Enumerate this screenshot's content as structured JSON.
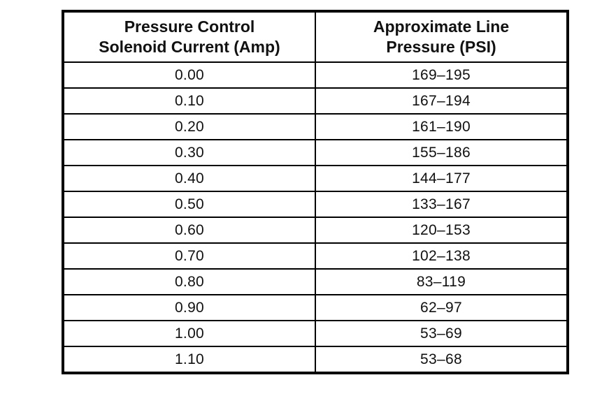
{
  "table": {
    "headers": {
      "col1_line1": "Pressure Control",
      "col1_line2": "Solenoid Current (Amp)",
      "col2_line1": "Approximate Line",
      "col2_line2": "Pressure (PSI)"
    },
    "rows": [
      {
        "amp": "0.00",
        "psi": "169–195"
      },
      {
        "amp": "0.10",
        "psi": "167–194"
      },
      {
        "amp": "0.20",
        "psi": "161–190"
      },
      {
        "amp": "0.30",
        "psi": "155–186"
      },
      {
        "amp": "0.40",
        "psi": "144–177"
      },
      {
        "amp": "0.50",
        "psi": "133–167"
      },
      {
        "amp": "0.60",
        "psi": "120–153"
      },
      {
        "amp": "0.70",
        "psi": "102–138"
      },
      {
        "amp": "0.80",
        "psi": "83–119"
      },
      {
        "amp": "0.90",
        "psi": "62–97"
      },
      {
        "amp": "1.00",
        "psi": "53–69"
      },
      {
        "amp": "1.10",
        "psi": "53–68"
      }
    ]
  }
}
